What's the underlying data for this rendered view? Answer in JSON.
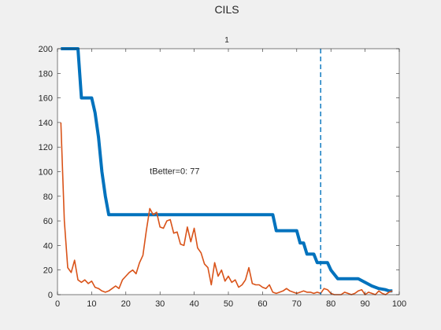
{
  "figure": {
    "title": "CILS"
  },
  "chart_data": {
    "type": "line",
    "subtitle": "1",
    "xlim": [
      0,
      100
    ],
    "ylim": [
      0,
      200
    ],
    "xticks": [
      0,
      10,
      20,
      30,
      40,
      50,
      60,
      70,
      80,
      90,
      100
    ],
    "yticks": [
      0,
      20,
      40,
      60,
      80,
      100,
      120,
      140,
      160,
      180,
      200
    ],
    "grid": false,
    "annotation": {
      "text": "tBetter=0: 77",
      "x": 27,
      "y": 98
    },
    "vline": {
      "x": 77,
      "color": "#0072BD",
      "style": "dashed"
    },
    "series": [
      {
        "color": "#0072BD",
        "x": [
          1,
          5,
          6,
          7,
          10,
          11,
          12,
          13,
          14,
          15,
          16,
          63,
          64,
          70,
          71,
          72,
          73,
          74,
          75,
          76,
          77,
          79,
          80,
          82,
          88,
          90,
          92,
          94,
          96,
          97,
          98
        ],
        "values": [
          200,
          200,
          200,
          160,
          160,
          148,
          128,
          100,
          80,
          65,
          65,
          65,
          52,
          52,
          42,
          42,
          33,
          33,
          33,
          26,
          26,
          26,
          20,
          13,
          13,
          10,
          7,
          5,
          4,
          3,
          3
        ]
      },
      {
        "color": "#D95319",
        "x": [
          1,
          2,
          3,
          4,
          5,
          6,
          7,
          8,
          9,
          10,
          11,
          12,
          13,
          14,
          15,
          16,
          17,
          18,
          19,
          20,
          21,
          22,
          23,
          24,
          25,
          26,
          27,
          28,
          29,
          30,
          31,
          32,
          33,
          34,
          35,
          36,
          37,
          38,
          39,
          40,
          41,
          42,
          43,
          44,
          45,
          46,
          47,
          48,
          49,
          50,
          51,
          52,
          53,
          54,
          55,
          56,
          57,
          58,
          59,
          60,
          61,
          62,
          63,
          64,
          65,
          66,
          67,
          68,
          69,
          70,
          71,
          72,
          73,
          74,
          75,
          76,
          77,
          78,
          79,
          80,
          81,
          82,
          83,
          84,
          85,
          86,
          87,
          88,
          89,
          90,
          91,
          92,
          93,
          94,
          95,
          96,
          97,
          98
        ],
        "values": [
          140,
          60,
          22,
          18,
          28,
          12,
          10,
          12,
          9,
          11,
          6,
          5,
          3,
          2,
          3,
          5,
          7,
          5,
          12,
          15,
          18,
          20,
          17,
          26,
          32,
          52,
          70,
          65,
          67,
          55,
          54,
          60,
          61,
          50,
          51,
          41,
          40,
          55,
          43,
          54,
          38,
          34,
          25,
          22,
          8,
          26,
          15,
          20,
          11,
          15,
          10,
          12,
          6,
          8,
          12,
          22,
          9,
          8,
          8,
          6,
          5,
          8,
          2,
          1,
          2,
          3,
          5,
          3,
          2,
          1,
          2,
          3,
          2,
          2,
          1,
          2,
          1,
          5,
          4,
          1,
          0,
          0,
          0,
          2,
          1,
          0,
          1,
          3,
          4,
          0,
          2,
          1,
          0,
          3,
          1,
          0,
          2,
          3
        ]
      }
    ]
  }
}
